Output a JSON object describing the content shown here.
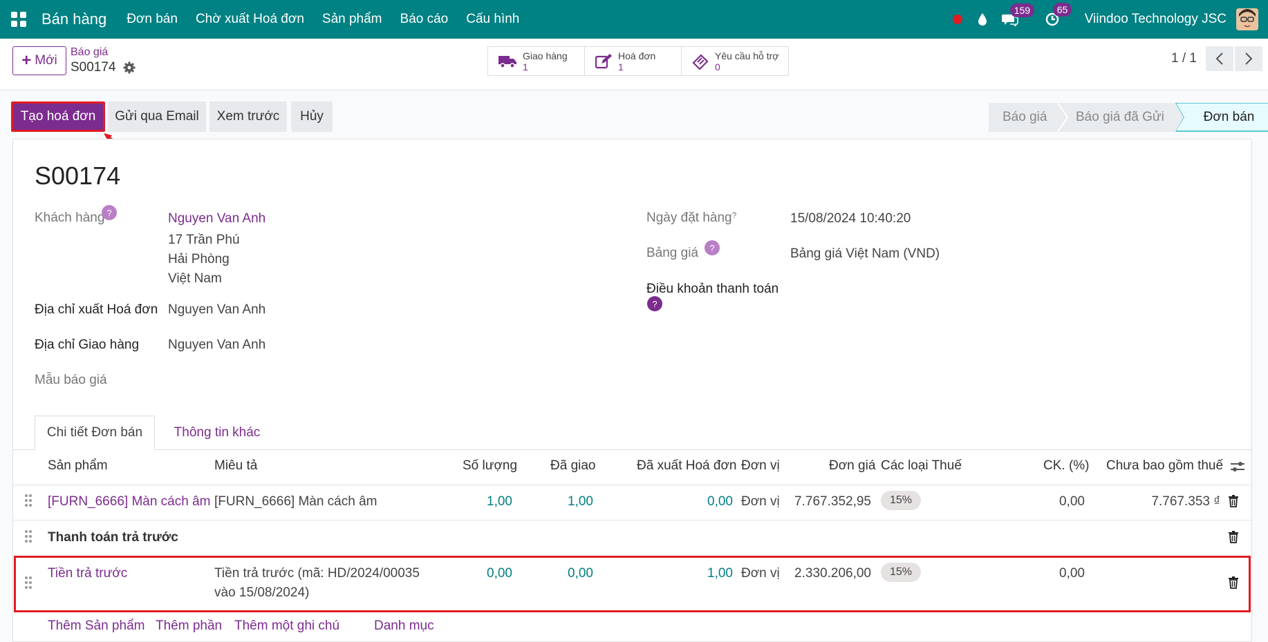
{
  "navbar": {
    "app_name": "Bán hàng",
    "menu": [
      "Đơn bán",
      "Chờ xuất Hoá đơn",
      "Sản phẩm",
      "Báo cáo",
      "Cấu hình"
    ],
    "messages_count": "159",
    "activities_count": "65",
    "company": "Viindoo Technology JSC",
    "colors": {
      "bar": "#008183",
      "brand_purple": "#7c2c8e",
      "status_dot": "#e01b24"
    }
  },
  "control": {
    "new_label": "Mới",
    "breadcrumb_parent": "Báo giá",
    "breadcrumb_current": "S00174",
    "smart_buttons": [
      {
        "label": "Giao hàng",
        "count": "1",
        "icon": "truck-icon"
      },
      {
        "label": "Hoá đơn",
        "count": "1",
        "icon": "edit-icon"
      },
      {
        "label": "Yêu cầu hỗ trợ",
        "count": "0",
        "icon": "ticket-icon"
      }
    ],
    "pager": "1 / 1"
  },
  "actions": {
    "create_invoice": "Tạo hoá đơn",
    "send_email": "Gửi qua Email",
    "preview": "Xem trước",
    "cancel": "Hủy"
  },
  "statusbar": [
    "Báo giá",
    "Báo giá đã Gửi",
    "Đơn bán"
  ],
  "form": {
    "title": "S00174",
    "customer_label": "Khách hàng",
    "customer_name": "Nguyen Van Anh",
    "customer_address": [
      "17 Trần Phú",
      "Hải Phòng",
      "Việt Nam"
    ],
    "invoice_address_label": "Địa chỉ xuất Hoá đơn",
    "invoice_address": "Nguyen Van Anh",
    "delivery_address_label": "Địa chỉ Giao hàng",
    "delivery_address": "Nguyen Van Anh",
    "quote_template_label": "Mẫu báo giá",
    "order_date_label": "Ngày đặt hàng",
    "order_date": "15/08/2024 10:40:20",
    "pricelist_label": "Bảng giá",
    "pricelist": "Bảng giá Việt Nam (VND)",
    "payment_terms_label": "Điều khoản thanh toán",
    "help_mark": "?"
  },
  "tabs": [
    "Chi tiết Đơn bán",
    "Thông tin khác"
  ],
  "table": {
    "headers": [
      "Sản phẩm",
      "Miêu tả",
      "Số lượng",
      "Đã giao",
      "Đã xuất Hoá đơn",
      "Đơn vị",
      "Đơn giá",
      "Các loại Thuế",
      "CK. (%)",
      "Chưa bao gồm thuế"
    ],
    "rows": [
      {
        "product": "[FURN_6666] Màn cách âm",
        "description": "[FURN_6666] Màn cách âm",
        "qty": "1,00",
        "delivered": "1,00",
        "invoiced": "0,00",
        "uom": "Đơn vị",
        "price": "7.767.352,95",
        "tax": "15%",
        "discount": "0,00",
        "subtotal": "7.767.353 ₫"
      },
      {
        "section": "Thanh toán trả trước"
      },
      {
        "product": "Tiền trả trước",
        "description_1": "Tiền trả trước (mã: HD/2024/00035",
        "description_2": "vào 15/08/2024)",
        "qty": "0,00",
        "delivered": "0,00",
        "invoiced": "1,00",
        "uom": "Đơn vị",
        "price": "2.330.206,00",
        "tax": "15%",
        "discount": "0,00"
      }
    ],
    "add_links": [
      "Thêm Sản phẩm",
      "Thêm phần",
      "Thêm một ghi chú",
      "Danh mục"
    ]
  }
}
